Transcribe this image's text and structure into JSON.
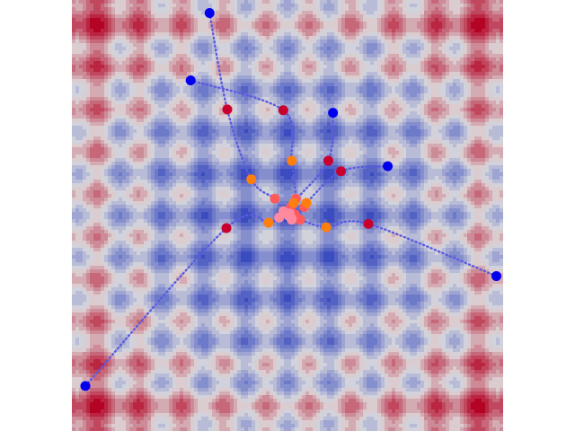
{
  "chart_data": {
    "type": "scatter",
    "title": "",
    "xlabel": "",
    "ylabel": "",
    "axes_visible": false,
    "grid": false,
    "legend": "none",
    "xlim": [
      -5.12,
      5.12
    ],
    "ylim": [
      -5.12,
      5.12
    ],
    "background": {
      "kind": "contour",
      "function": "Rastrigin",
      "colormap": "coolwarm",
      "low_color": "#3b4cc0",
      "mid_color": "#dddddd",
      "high_color": "#b40426"
    },
    "stage_colors": {
      "start": "#0000ee",
      "stage_1": "#c8002d",
      "stage_2": "#ff7f0e",
      "stage_3": "#ff5a5a",
      "final": "#ff8aa0",
      "trajectory": "#5b5be0"
    },
    "trajectories": [
      {
        "points": [
          [
            -2.3,
            3.21
          ],
          [
            -0.1,
            2.5
          ],
          [
            0.1,
            1.3
          ],
          [
            0.2,
            0.4
          ],
          [
            0.08,
            0.2
          ],
          [
            0.02,
            0.0
          ]
        ]
      },
      {
        "points": [
          [
            -1.85,
            4.81
          ],
          [
            -1.43,
            2.52
          ],
          [
            -0.86,
            0.86
          ],
          [
            -0.3,
            0.4
          ],
          [
            -0.1,
            0.1
          ]
        ]
      },
      {
        "points": [
          [
            -4.8,
            -4.05
          ],
          [
            -1.45,
            -0.3
          ],
          [
            -0.45,
            -0.17
          ],
          [
            -0.2,
            -0.05
          ]
        ]
      },
      {
        "points": [
          [
            1.08,
            2.44
          ],
          [
            0.97,
            1.3
          ],
          [
            0.15,
            0.3
          ],
          [
            0.4,
            0.2
          ],
          [
            0.1,
            -0.1
          ]
        ]
      },
      {
        "points": [
          [
            2.38,
            1.17
          ],
          [
            1.27,
            1.05
          ],
          [
            0.45,
            0.3
          ],
          [
            0.18,
            0.02
          ],
          [
            0.05,
            0.05
          ]
        ]
      },
      {
        "points": [
          [
            4.96,
            -1.44
          ],
          [
            1.92,
            -0.2
          ],
          [
            0.92,
            -0.28
          ],
          [
            0.3,
            -0.1
          ],
          [
            0.1,
            -0.08
          ]
        ]
      }
    ]
  }
}
